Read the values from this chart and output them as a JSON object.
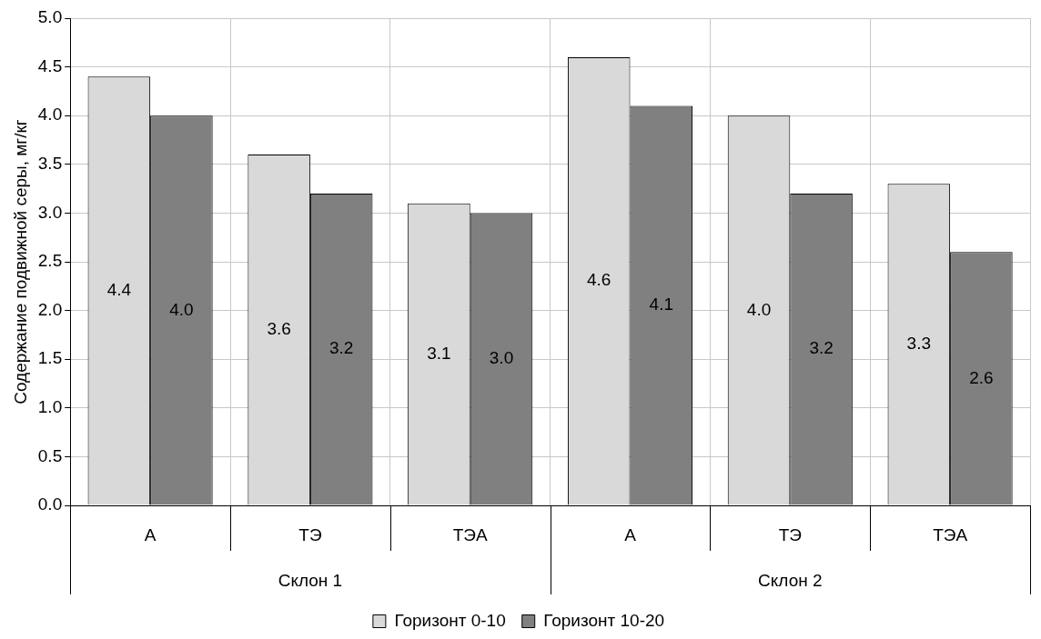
{
  "chart_data": {
    "type": "bar",
    "ylabel": "Содержание подвижной серы, мг/кг",
    "categories": [
      "А",
      "ТЭ",
      "ТЭА",
      "А",
      "ТЭ",
      "ТЭА"
    ],
    "series": [
      {
        "name": "Горизонт 0-10",
        "color": "#d9d9d9",
        "values": [
          4.4,
          3.6,
          3.1,
          4.6,
          4.0,
          3.3
        ],
        "value_labels": [
          "4.4",
          "3.6",
          "3.1",
          "4.6",
          "4.0",
          "3.3"
        ]
      },
      {
        "name": "Горизонт 10-20",
        "color": "#808080",
        "values": [
          4.0,
          3.2,
          3.0,
          4.1,
          3.2,
          2.6
        ],
        "value_labels": [
          "4.0",
          "3.2",
          "3.0",
          "4.1",
          "3.2",
          "2.6"
        ]
      }
    ],
    "annotations": [
      "Склон 1",
      "Склон 2"
    ],
    "ylim": [
      0,
      5
    ],
    "yticks": [
      {
        "value": 0,
        "label": "0.0"
      },
      {
        "value": 0.5,
        "label": "0.5"
      },
      {
        "value": 1,
        "label": "1.0"
      },
      {
        "value": 1.5,
        "label": "1.5"
      },
      {
        "value": 2,
        "label": "2.0"
      },
      {
        "value": 2.5,
        "label": "2.5"
      },
      {
        "value": 3,
        "label": "3.0"
      },
      {
        "value": 3.5,
        "label": "3.5"
      },
      {
        "value": 4,
        "label": "4.0"
      },
      {
        "value": 4.5,
        "label": "4.5"
      },
      {
        "value": 5,
        "label": "5.0"
      }
    ],
    "grid": true,
    "legend": "bottom"
  }
}
